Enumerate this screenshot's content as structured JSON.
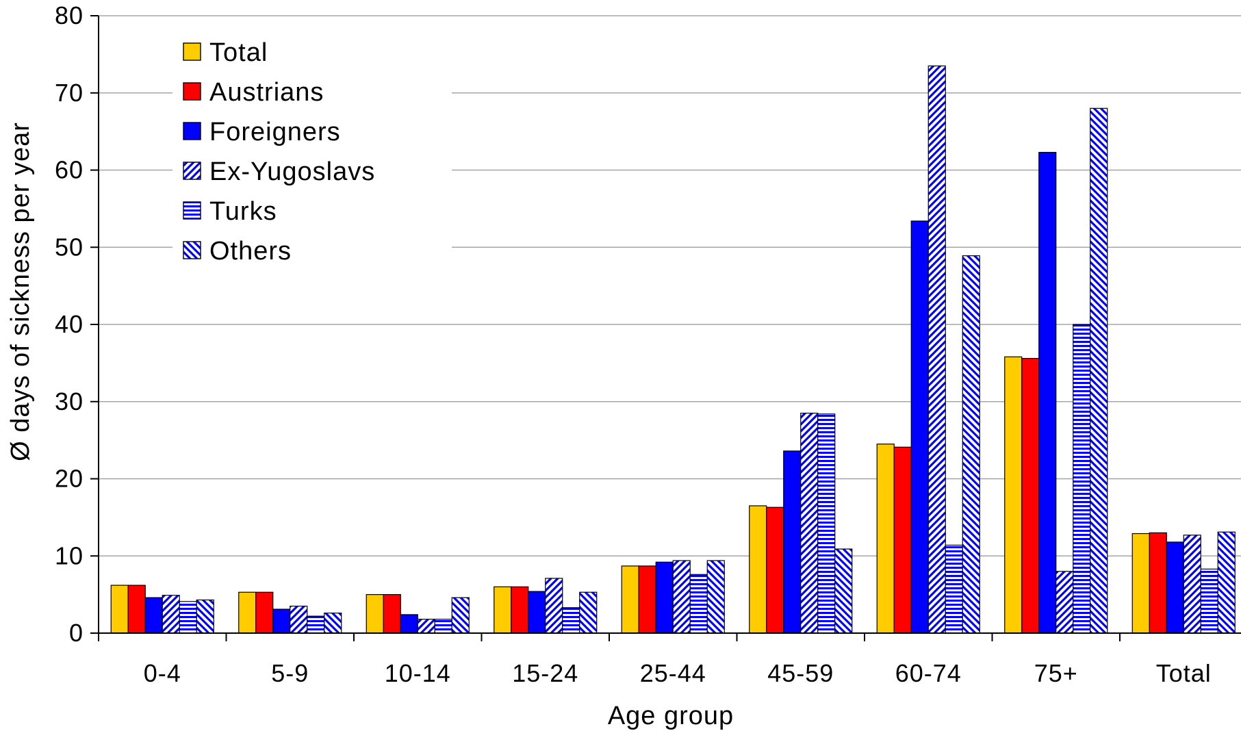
{
  "chart_data": {
    "type": "bar",
    "title": "",
    "xlabel": "Age group",
    "ylabel": "Ø days of sickness per year",
    "ylim": [
      0,
      80
    ],
    "yticks": [
      0,
      10,
      20,
      30,
      40,
      50,
      60,
      70,
      80
    ],
    "grid": true,
    "legend_position": "top-left",
    "categories": [
      "0-4",
      "5-9",
      "10-14",
      "15-24",
      "25-44",
      "45-59",
      "60-74",
      "75+",
      "Total"
    ],
    "series": [
      {
        "name": "Total",
        "color": "#FFCC00",
        "pattern": "solid",
        "values": [
          6.2,
          5.3,
          5.0,
          6.0,
          8.7,
          16.5,
          24.5,
          35.8,
          12.9
        ]
      },
      {
        "name": "Austrians",
        "color": "#FF0000",
        "pattern": "solid",
        "values": [
          6.2,
          5.3,
          5.0,
          6.0,
          8.7,
          16.3,
          24.1,
          35.6,
          13.0
        ]
      },
      {
        "name": "Foreigners",
        "color": "#0000FF",
        "pattern": "solid",
        "values": [
          4.6,
          3.1,
          2.4,
          5.4,
          9.2,
          23.6,
          53.4,
          62.3,
          11.8
        ]
      },
      {
        "name": "Ex-Yugoslavs",
        "color": "#0000FF",
        "pattern": "diagonal-up",
        "values": [
          4.9,
          3.5,
          1.8,
          7.1,
          9.4,
          28.5,
          73.5,
          8.0,
          12.7
        ]
      },
      {
        "name": "Turks",
        "color": "#0000FF",
        "pattern": "horizontal",
        "values": [
          4.1,
          2.2,
          1.8,
          3.3,
          7.6,
          28.4,
          11.4,
          40.0,
          8.3
        ]
      },
      {
        "name": "Others",
        "color": "#0000FF",
        "pattern": "diagonal-down",
        "values": [
          4.3,
          2.6,
          4.6,
          5.3,
          9.4,
          10.9,
          48.9,
          68.0,
          13.1
        ]
      }
    ]
  }
}
